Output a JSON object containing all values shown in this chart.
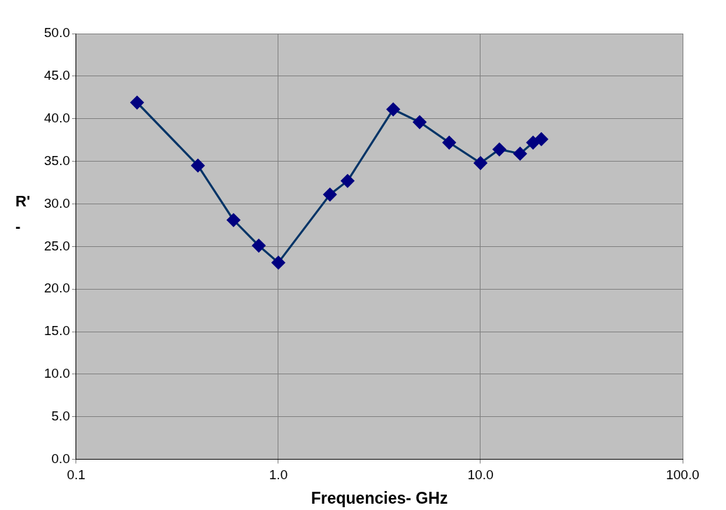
{
  "chart_data": {
    "type": "line",
    "xlabel": "Frequencies- GHz",
    "ylabel": "R'\n-",
    "x": [
      0.2,
      0.4,
      0.6,
      0.8,
      1.0,
      1.8,
      2.2,
      3.7,
      5,
      7,
      10,
      12.4,
      15.7,
      18.2,
      20
    ],
    "series": [
      {
        "color": "#003366",
        "values": [
          41.9,
          34.5,
          28.1,
          25.1,
          23.1,
          31.1,
          32.7,
          41.1,
          39.6,
          37.2,
          34.8,
          36.4,
          35.9,
          37.2,
          37.6
        ]
      }
    ],
    "log": "x",
    "xlim": [
      0.1,
      100
    ],
    "xticks": [
      {
        "value": 0.1,
        "label": "0.1"
      },
      {
        "value": 1,
        "label": "1.0"
      },
      {
        "value": 10,
        "label": "10.0"
      },
      {
        "value": 100,
        "label": "100.0"
      }
    ],
    "ylim": [
      0,
      50
    ],
    "yticks": [
      {
        "value": 0,
        "label": "0.0"
      },
      {
        "value": 5,
        "label": "5.0"
      },
      {
        "value": 10,
        "label": "10.0"
      },
      {
        "value": 15,
        "label": "15.0"
      },
      {
        "value": 20,
        "label": "20.0"
      },
      {
        "value": 25,
        "label": "25.0"
      },
      {
        "value": 30,
        "label": "30.0"
      },
      {
        "value": 35,
        "label": "35.0"
      },
      {
        "value": 40,
        "label": "40.0"
      },
      {
        "value": 45,
        "label": "45.0"
      },
      {
        "value": 50,
        "label": "50.0"
      }
    ],
    "grid": true,
    "legend": false,
    "marker": "diamond",
    "line_style": "solid"
  }
}
